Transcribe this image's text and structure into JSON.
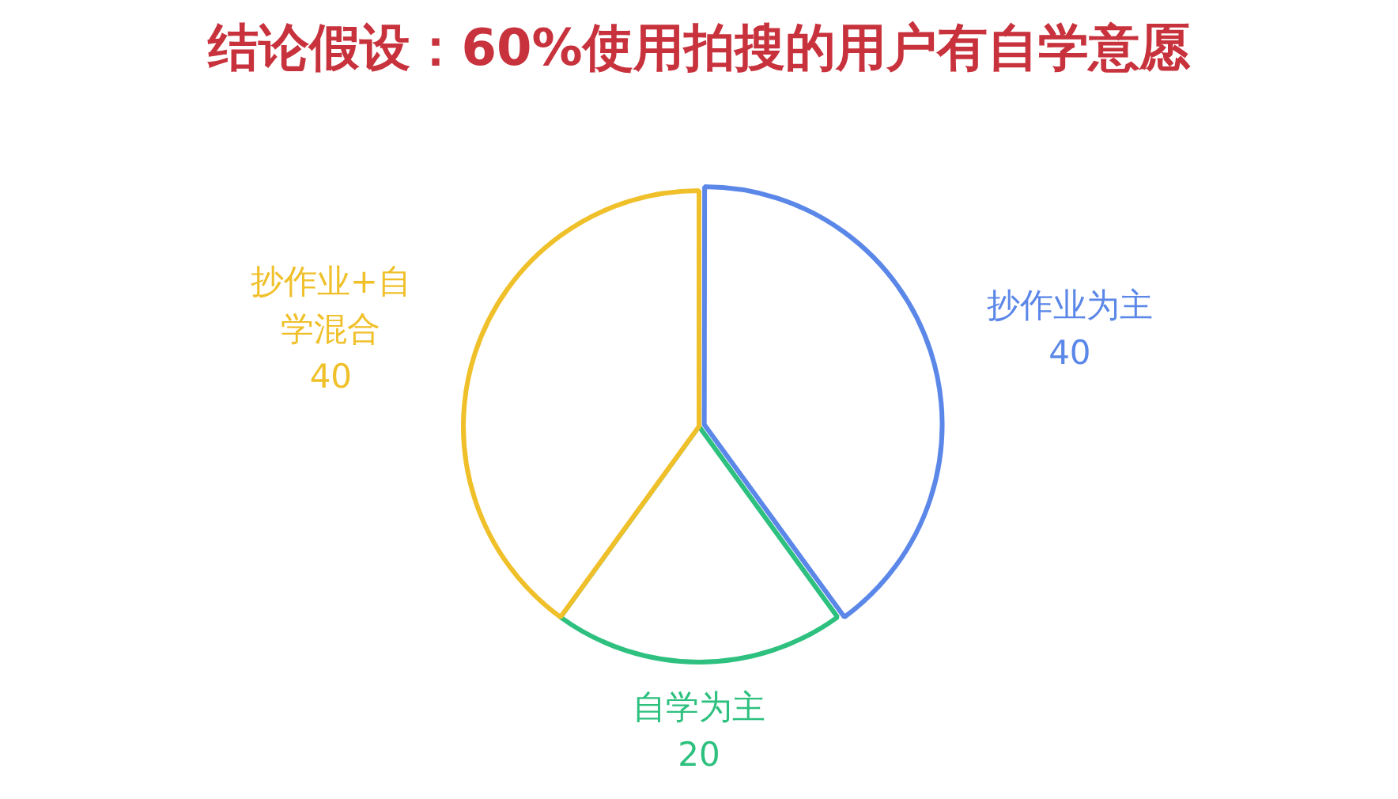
{
  "chart_data": {
    "type": "pie",
    "title": "结论假设：60%使用拍搜的用户有自学意愿",
    "categories": [
      "抄作业为主",
      "自学为主",
      "抄作业+自学混合"
    ],
    "values": [
      40,
      20,
      40
    ],
    "colors": [
      "#5b87e8",
      "#2ec07f",
      "#f0c02a"
    ],
    "data_labels": true,
    "legend": false
  }
}
